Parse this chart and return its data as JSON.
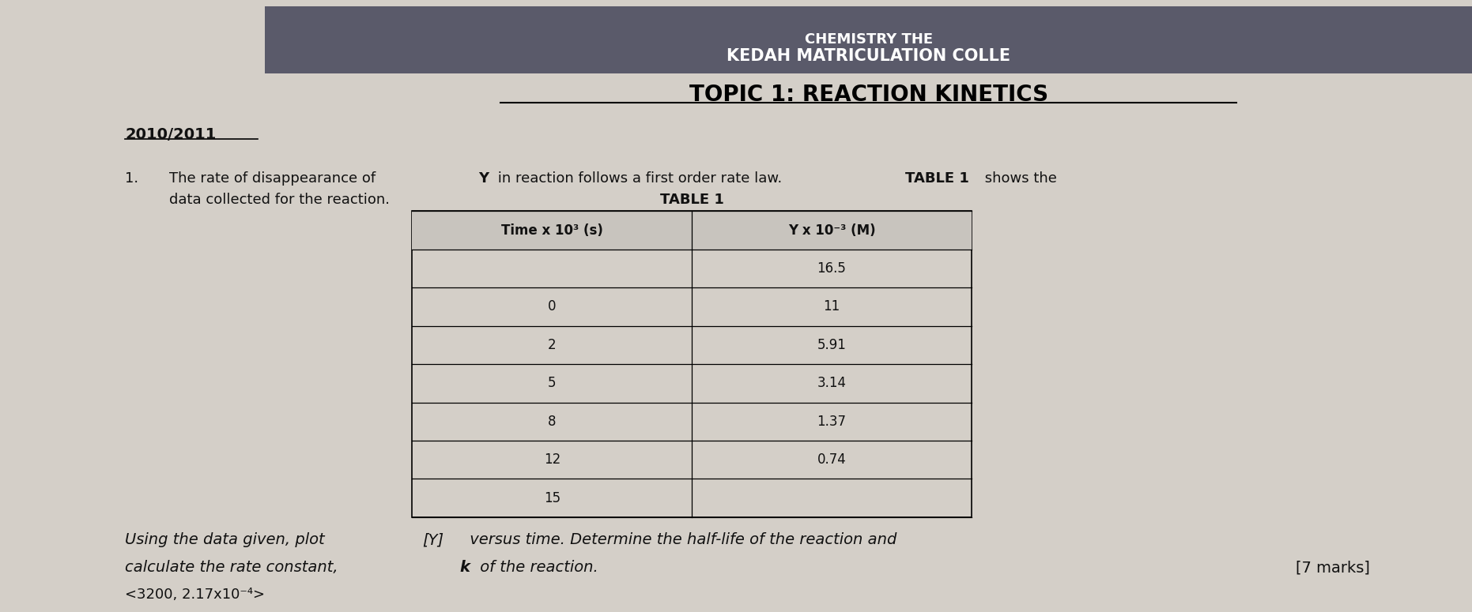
{
  "header_institution": "KEDAH MATRICULATION COLLE",
  "header_chemistry": "CHEMISTRY THE",
  "topic": "TOPIC 1: REACTION KINETICS",
  "year": "2010/2011",
  "table_title": "TABLE 1",
  "col1_header": "Time x 10³ (s)",
  "col2_header": "Y x 10⁻³ (M)",
  "display_times": [
    "",
    "0",
    "2",
    "5",
    "8",
    "12",
    "15"
  ],
  "display_y": [
    "16.5",
    "11",
    "5.91",
    "3.14",
    "1.37",
    "0.74",
    ""
  ],
  "marks": "[7 marks]",
  "answer_hint": "<3200, 2.17x10⁻⁴>",
  "bg_color": "#d4cfc8",
  "header_bg": "#5a5a6a",
  "header_text_color": "#ffffff",
  "title_color": "#000000",
  "body_text_color": "#111111"
}
